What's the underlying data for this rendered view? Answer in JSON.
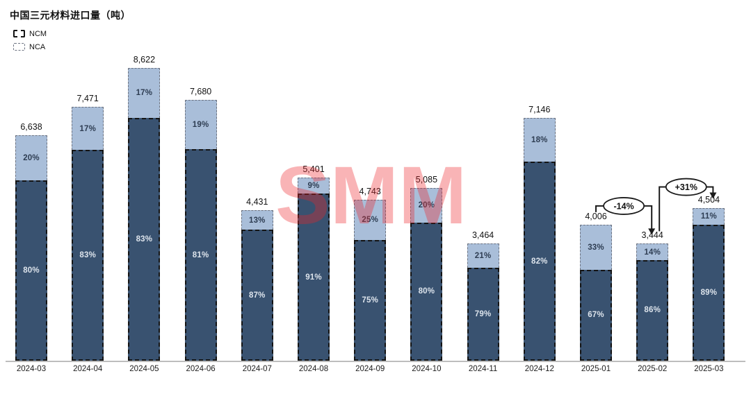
{
  "chart_data": {
    "type": "bar",
    "stacked": true,
    "title": "中国三元材料进口量（吨）",
    "categories": [
      "2024-03",
      "2024-04",
      "2024-05",
      "2024-06",
      "2024-07",
      "2024-08",
      "2024-09",
      "2024-10",
      "2024-11",
      "2024-12",
      "2025-01",
      "2025-02",
      "2025-03"
    ],
    "totals": [
      6638,
      7471,
      8622,
      7680,
      4431,
      5401,
      4743,
      5085,
      3464,
      7146,
      4006,
      3444,
      4504
    ],
    "total_labels": [
      "6,638",
      "7,471",
      "8,622",
      "7,680",
      "4,431",
      "5,401",
      "4,743",
      "5,085",
      "3,464",
      "7,146",
      "4,006",
      "3,444",
      "4,504"
    ],
    "series": [
      {
        "name": "NCM",
        "color": "#395270",
        "pct": [
          80,
          83,
          83,
          81,
          87,
          91,
          75,
          80,
          79,
          82,
          67,
          86,
          89
        ]
      },
      {
        "name": "NCA",
        "color": "#a9bed9",
        "pct": [
          20,
          17,
          17,
          19,
          13,
          9,
          25,
          20,
          21,
          18,
          33,
          14,
          11
        ]
      }
    ],
    "pct_unit": "%",
    "ylim": [
      0,
      8622
    ],
    "legend_position": "top-left",
    "grid": false,
    "annotations": [
      {
        "label": "-14%",
        "from": "2025-01",
        "to": "2025-02"
      },
      {
        "label": "+31%",
        "from": "2025-02",
        "to": "2025-03"
      }
    ],
    "watermark": "SMM",
    "colors": {
      "ncm_fill": "#395270",
      "nca_fill": "#a9bed9",
      "ncm_border": "#141414",
      "nca_border": "#6b7280",
      "axis": "#bdbdbd",
      "watermark_red": "#ec242a"
    }
  }
}
